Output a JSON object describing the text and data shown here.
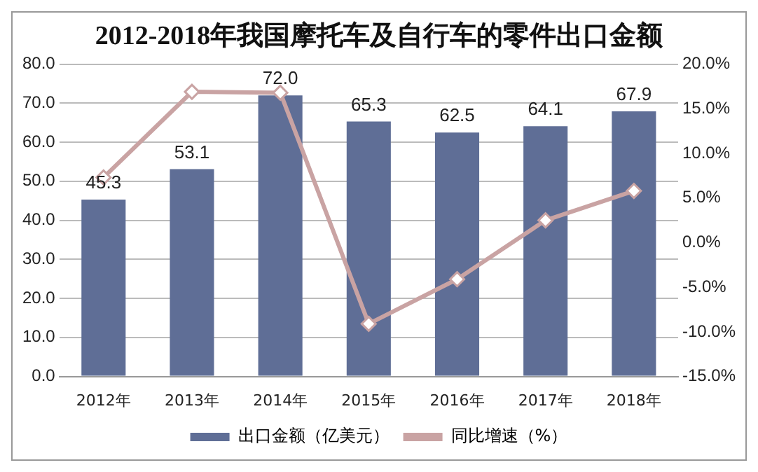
{
  "chart_data": {
    "type": "bar",
    "title": "2012-2018年我国摩托车及自行车的零件出口金额",
    "categories": [
      "2012年",
      "2013年",
      "2014年",
      "2015年",
      "2016年",
      "2017年",
      "2018年"
    ],
    "series": [
      {
        "name": "出口金额（亿美元）",
        "color": "#5f6e96",
        "values": [
          45.3,
          53.1,
          72.0,
          65.3,
          62.5,
          64.1,
          67.9
        ],
        "value_labels": [
          "45.3",
          "53.1",
          "72.0",
          "65.3",
          "62.5",
          "64.1",
          "67.9"
        ]
      },
      {
        "name": "同比增速（%）",
        "type": "line",
        "axis": "y2",
        "color": "#c9a3a3",
        "marker": "diamond",
        "values": [
          7.3,
          16.9,
          16.8,
          -9.1,
          -4.1,
          2.5,
          5.8
        ]
      }
    ],
    "ylim": [
      0,
      80
    ],
    "yticks": [
      {
        "value": 0,
        "label": "0.0"
      },
      {
        "value": 10,
        "label": "10.0"
      },
      {
        "value": 20,
        "label": "20.0"
      },
      {
        "value": 30,
        "label": "30.0"
      },
      {
        "value": 40,
        "label": "40.0"
      },
      {
        "value": 50,
        "label": "50.0"
      },
      {
        "value": 60,
        "label": "60.0"
      },
      {
        "value": 70,
        "label": "70.0"
      },
      {
        "value": 80,
        "label": "80.0"
      }
    ],
    "y2lim": [
      -15,
      20
    ],
    "y2ticks": [
      {
        "value": -15,
        "label": "-15.0%"
      },
      {
        "value": -10,
        "label": "-10.0%"
      },
      {
        "value": -5,
        "label": "-5.0%"
      },
      {
        "value": 0,
        "label": "0.0%"
      },
      {
        "value": 5,
        "label": "5.0%"
      },
      {
        "value": 10,
        "label": "10.0%"
      },
      {
        "value": 15,
        "label": "15.0%"
      },
      {
        "value": 20,
        "label": "20.0%"
      }
    ],
    "grid": "y",
    "legend": "bottom"
  }
}
